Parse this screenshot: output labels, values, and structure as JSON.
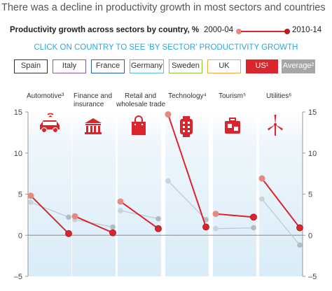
{
  "title": "There was a decline in productivity growth in most sectors and countries",
  "chart_title": "Productivity growth across sectors by country, %",
  "legend": [
    {
      "label": "2000-04",
      "color": "#e58a80"
    },
    {
      "label": "2010-14",
      "color": "#d9252b"
    }
  ],
  "instruction": "CLICK ON COUNTRY TO SEE ‘BY SECTOR’ PRODUCTIVITY GROWTH",
  "countries": [
    {
      "label": "Spain",
      "color": "#333333",
      "active": false
    },
    {
      "label": "Italy",
      "color": "#8a5ca8",
      "active": false
    },
    {
      "label": "France",
      "color": "#1f5fa8",
      "active": false
    },
    {
      "label": "Germany",
      "color": "#5ab8d6",
      "active": false
    },
    {
      "label": "Sweden",
      "color": "#8dc63f",
      "active": false
    },
    {
      "label": "UK",
      "color": "#f4a23c",
      "active": false
    },
    {
      "label": "US¹",
      "color": "#d9252b",
      "active": true
    },
    {
      "label": "Average²",
      "color": "#a6a6a6",
      "active": false
    }
  ],
  "icons": [
    "car-icon",
    "bank-icon",
    "shopping-bag-icon",
    "smartwatch-icon",
    "suitcase-icon",
    "wind-turbine-icon"
  ],
  "colors": {
    "us_line": "#d9252b",
    "avg_line": "#b9c8d3",
    "us_2000_dot": "#e58a80",
    "panel_bg": "#e6f2fa"
  },
  "chart_data": {
    "type": "line",
    "categories": [
      "Automotive³",
      "Finance and insurance",
      "Retail and wholesale trade",
      "Technology⁴",
      "Tourism⁵",
      "Utilities⁶"
    ],
    "ylim": [
      -5,
      15
    ],
    "yticks": [
      -5,
      0,
      5,
      10,
      15
    ],
    "series": [
      {
        "name": "US¹",
        "values_2000_04": [
          4.8,
          2.3,
          4.1,
          14.7,
          2.6,
          6.9
        ],
        "values_2010_14": [
          0.2,
          0.3,
          0.8,
          1.0,
          2.2,
          0.9
        ]
      },
      {
        "name": "Average²",
        "values_2000_04": [
          4.0,
          1.9,
          3.0,
          6.6,
          0.8,
          4.4
        ],
        "values_2010_14": [
          2.2,
          1.0,
          2.0,
          1.9,
          0.9,
          -1.2
        ]
      }
    ]
  }
}
